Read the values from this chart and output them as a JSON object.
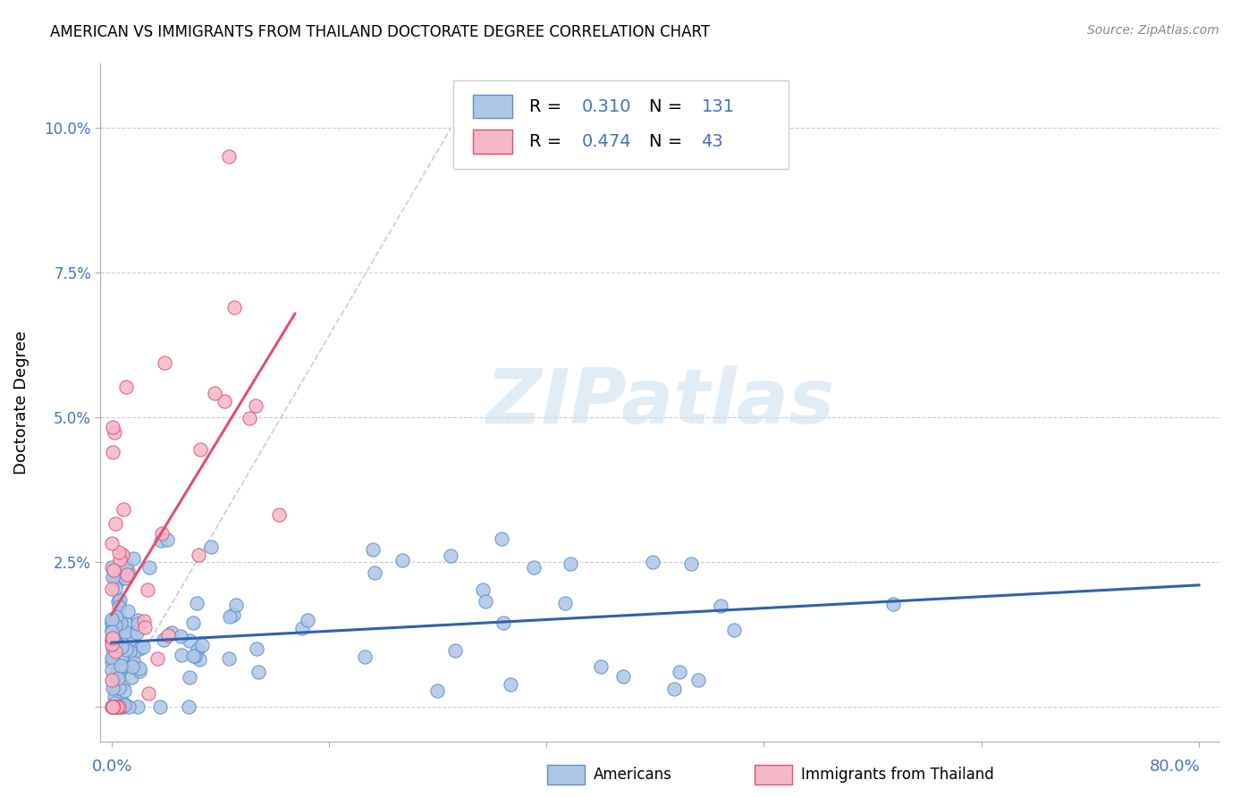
{
  "title": "AMERICAN VS IMMIGRANTS FROM THAILAND DOCTORATE DEGREE CORRELATION CHART",
  "source": "Source: ZipAtlas.com",
  "ylabel": "Doctorate Degree",
  "r_american": 0.31,
  "n_american": 131,
  "r_thailand": 0.474,
  "n_thailand": 43,
  "watermark": "ZIPatlas",
  "legend_labels": [
    "Americans",
    "Immigrants from Thailand"
  ],
  "american_color": "#aec6e8",
  "american_edge": "#5b8ec4",
  "thailand_color": "#f5b8c8",
  "thailand_edge": "#e05070",
  "american_line_color": "#3060b0",
  "thailand_line_color": "#e05070",
  "dashed_color": "#cccccc",
  "background_color": "#ffffff",
  "ytick_vals": [
    0.0,
    0.025,
    0.05,
    0.075,
    0.1
  ],
  "ytick_labels": [
    "",
    "2.5%",
    "5.0%",
    "7.5%",
    "10.0%"
  ]
}
